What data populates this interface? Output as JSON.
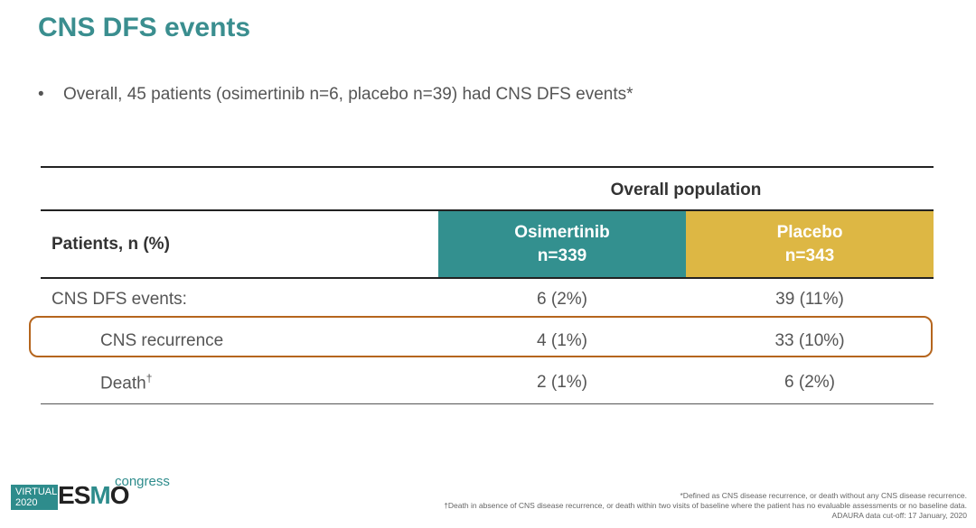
{
  "title": "CNS DFS events",
  "bullet": "Overall, 45 patients (osimertinib n=6, placebo n=39) had CNS DFS events*",
  "table": {
    "group_header": "Overall population",
    "row_header": "Patients, n (%)",
    "col_osimertinib": {
      "name": "Osimertinib",
      "n": "n=339"
    },
    "col_placebo": {
      "name": "Placebo",
      "n": "n=343"
    },
    "rows": [
      {
        "label": "CNS DFS events:",
        "osimertinib": "6 (2%)",
        "placebo": "39 (11%)"
      },
      {
        "label": "CNS recurrence",
        "osimertinib": "4 (1%)",
        "placebo": "33 (10%)"
      },
      {
        "label": "Death",
        "label_sup": "†",
        "osimertinib": "2 (1%)",
        "placebo": "6 (2%)"
      }
    ]
  },
  "logo": {
    "virtual": "VIRTUAL 2020",
    "esmo_e": "E",
    "esmo_s": "S",
    "esmo_m": "M",
    "esmo_o": "O",
    "congress": "congress"
  },
  "footnotes": [
    "*Defined as CNS disease recurrence, or death without any CNS disease recurrence.",
    "†Death in absence of CNS disease recurrence, or death within two visits of baseline where the patient has no evaluable assessments or no baseline data.",
    "ADAURA data cut-off: 17 January, 2020"
  ],
  "colors": {
    "teal": "#33908f",
    "gold": "#ddb744",
    "highlight": "#b5651d"
  }
}
